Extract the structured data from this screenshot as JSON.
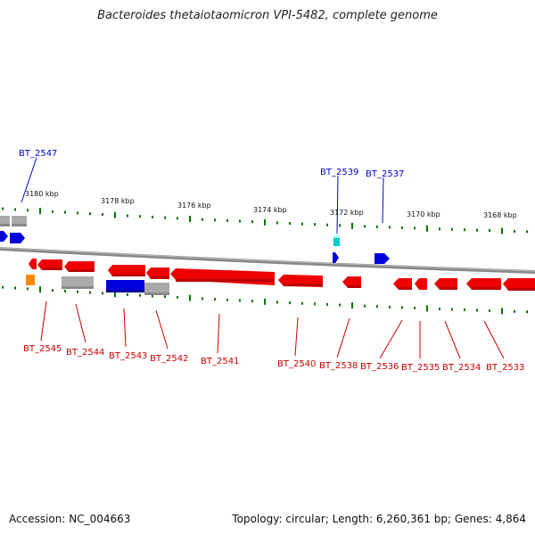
{
  "title": "Bacteroides thetaiotaomicron VPI-5482, complete genome",
  "footer": {
    "accession": "Accession: NC_004663",
    "topology": "Topology: circular; Length: 6,260,361 bp; Genes: 4,864"
  },
  "scale_labels": [
    "3180 kbp",
    "3178 kbp",
    "3176 kbp",
    "3174 kbp",
    "3172 kbp",
    "3170 kbp",
    "3168 kbp"
  ],
  "gene_labels": [
    "BT_2547",
    "BT_2545",
    "BT_2544",
    "BT_2543",
    "BT_2542",
    "BT_2541",
    "BT_2540",
    "BT_2539",
    "BT_2538",
    "BT_2537",
    "BT_2536",
    "BT_2535",
    "BT_2534",
    "BT_2533"
  ],
  "colors": {
    "red": "#ee0000",
    "blue": "#0000dd",
    "gray": "#aaaaaa",
    "orange": "#ff8800",
    "cyan": "#00cccc",
    "backbone": "#888888",
    "ticks": "#007700"
  }
}
